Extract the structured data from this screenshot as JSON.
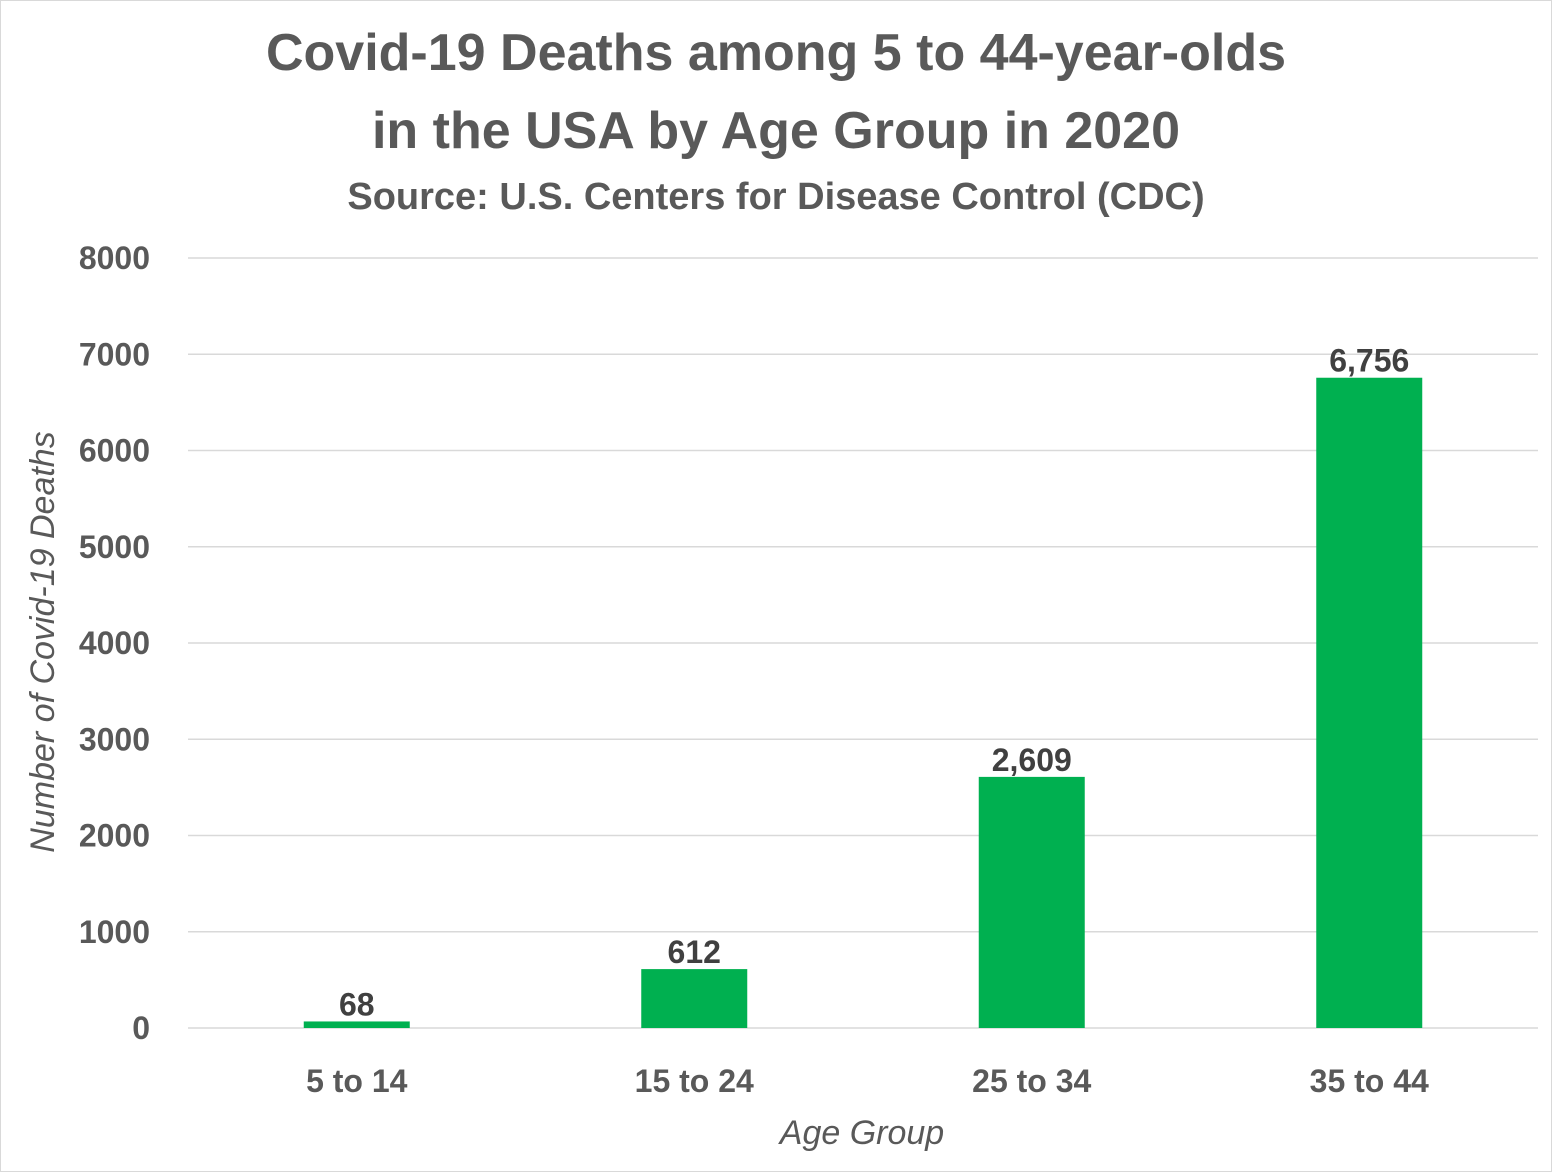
{
  "chart_data": {
    "type": "bar",
    "title_lines": [
      "Covid-19 Deaths among 5 to 44-year-olds",
      "in the USA by Age Group in 2020"
    ],
    "subtitle": "Source: U.S. Centers for Disease Control (CDC)",
    "xlabel": "Age Group",
    "ylabel": "Number of Covid-19 Deaths",
    "categories": [
      "5 to 14",
      "15 to 24",
      "25 to 34",
      "35 to 44"
    ],
    "values": [
      68,
      612,
      2609,
      6756
    ],
    "data_labels": [
      "68",
      "612",
      "2,609",
      "6,756"
    ],
    "ylim": [
      0,
      8000
    ],
    "yticks": [
      "0",
      "1000",
      "2000",
      "3000",
      "4000",
      "5000",
      "6000",
      "7000",
      "8000"
    ],
    "grid": true,
    "legend": "none",
    "bar_color": "#00b050",
    "gridline_color": "#d9d9d9",
    "text_color": "#595959"
  }
}
